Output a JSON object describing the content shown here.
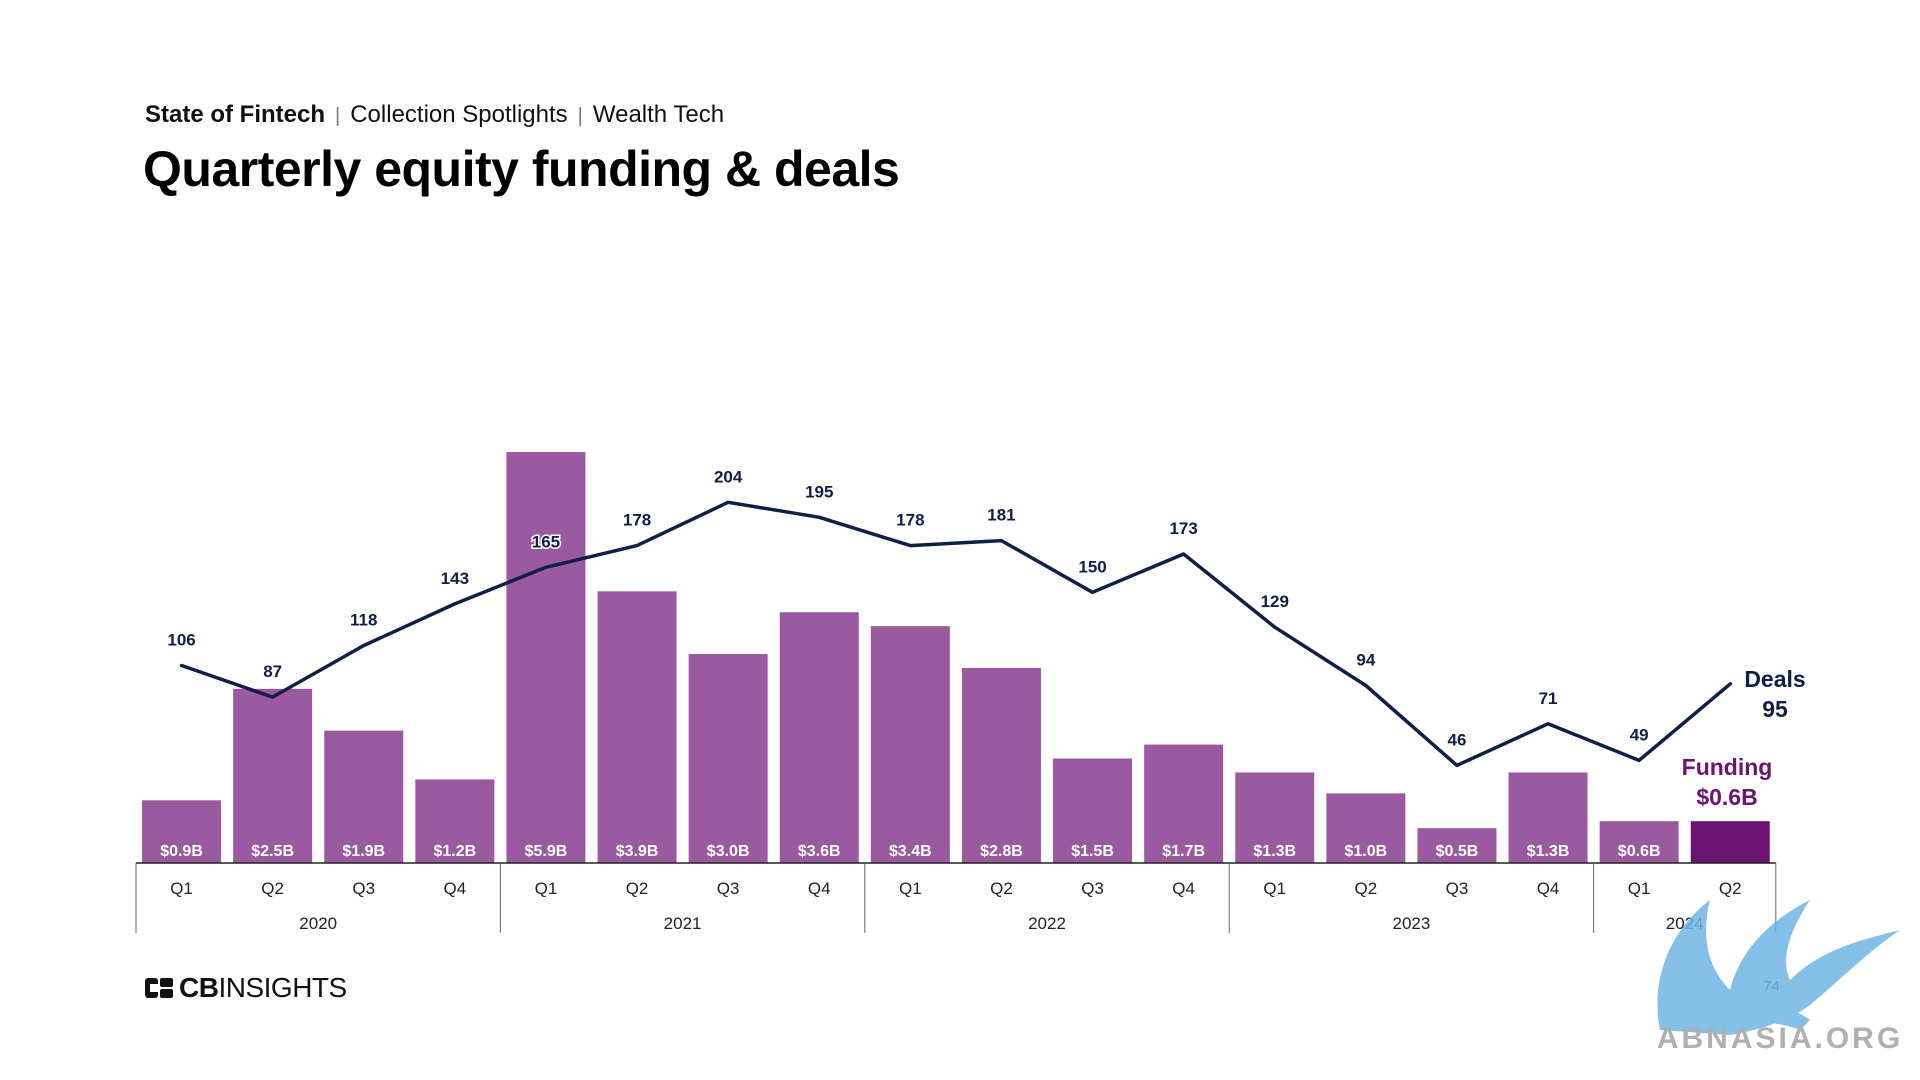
{
  "header": {
    "breadcrumb": [
      "State of Fintech",
      "Collection Spotlights",
      "Wealth Tech"
    ],
    "title": "Quarterly equity funding & deals"
  },
  "chart_data": {
    "type": "bar",
    "categories": [
      "Q1",
      "Q2",
      "Q3",
      "Q4",
      "Q1",
      "Q2",
      "Q3",
      "Q4",
      "Q1",
      "Q2",
      "Q3",
      "Q4",
      "Q1",
      "Q2",
      "Q3",
      "Q4",
      "Q1",
      "Q2"
    ],
    "years": [
      {
        "label": "2020",
        "count": 4
      },
      {
        "label": "2021",
        "count": 4
      },
      {
        "label": "2022",
        "count": 4
      },
      {
        "label": "2023",
        "count": 4
      },
      {
        "label": "2024",
        "count": 2
      }
    ],
    "series": [
      {
        "kind": "bar",
        "values": [
          0.9,
          2.5,
          1.9,
          1.2,
          5.9,
          3.9,
          3.0,
          3.6,
          3.4,
          2.8,
          1.5,
          1.7,
          1.3,
          1.0,
          0.5,
          1.3,
          0.6,
          0.6
        ],
        "labels": [
          "$0.9B",
          "$2.5B",
          "$1.9B",
          "$1.2B",
          "$5.9B",
          "$3.9B",
          "$3.0B",
          "$3.6B",
          "$3.4B",
          "$2.8B",
          "$1.5B",
          "$1.7B",
          "$1.3B",
          "$1.0B",
          "$0.5B",
          "$1.3B",
          "$0.6B",
          ""
        ],
        "color": "#9b59a0",
        "highlight_color": "#6b1470"
      },
      {
        "kind": "line",
        "values": [
          106,
          87,
          118,
          143,
          165,
          178,
          204,
          195,
          178,
          181,
          150,
          173,
          129,
          94,
          46,
          71,
          49,
          95
        ],
        "color": "#0f1f45"
      }
    ],
    "end_labels": {
      "deals_name": "Deals",
      "deals_value": "95",
      "funding_name": "Funding",
      "funding_value": "$0.6B"
    },
    "grid": false
  },
  "footer": {
    "logo_bold": "CB",
    "logo_light": "INSIGHTS",
    "page_number": "74",
    "watermark": "ABNASIA.ORG"
  }
}
